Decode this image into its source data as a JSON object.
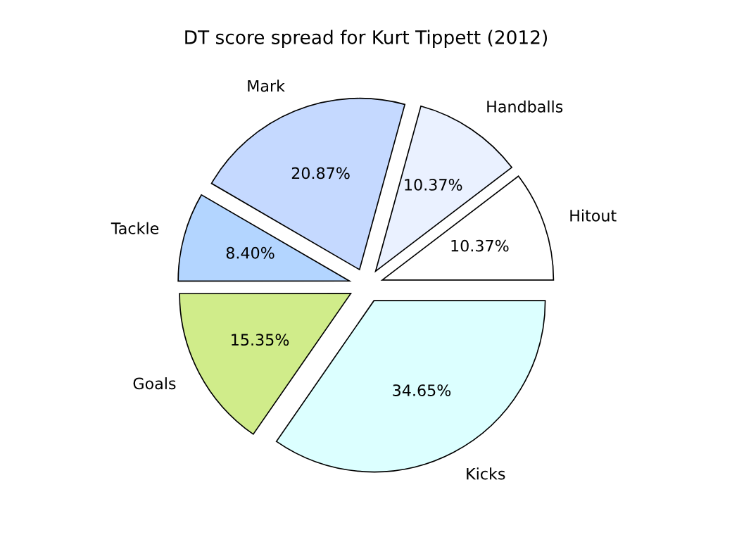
{
  "chart_data": {
    "type": "pie",
    "title": "DT score spread for Kurt Tippett (2012)",
    "categories": [
      "Hitout",
      "Handballs",
      "Mark",
      "Tackle",
      "Goals",
      "Kicks"
    ],
    "values": [
      10.37,
      10.37,
      20.87,
      8.4,
      15.35,
      34.65
    ],
    "value_labels": [
      "10.37%",
      "10.37%",
      "20.87%",
      "8.40%",
      "15.35%",
      "34.65%"
    ],
    "colors": [
      "#ffffff",
      "#eaf1ff",
      "#c5d9ff",
      "#b3d5ff",
      "#d0ec8a",
      "#dcffff"
    ]
  }
}
